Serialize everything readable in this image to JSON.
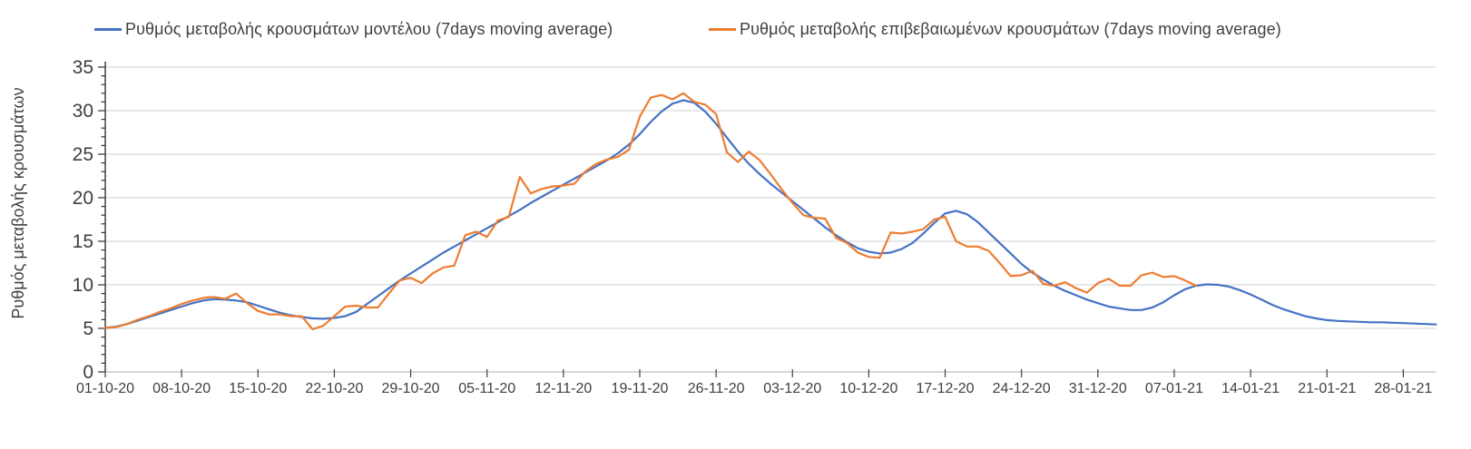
{
  "colors": {
    "model_line": "#4472c4",
    "confirmed_line": "#ed7d31",
    "gridline": "#d9d9d9",
    "x_axis_line": "#bfbfbf",
    "y_axis_line": "#333333",
    "tick_mark": "#404040",
    "label_text": "#3f3f3f"
  },
  "legend": [
    {
      "label": "Ρυθμός μεταβολής κρουσμάτων μοντέλου (7days moving average)",
      "color": "#4472c4"
    },
    {
      "label": "Ρυθμός μεταβολής επιβεβαιωμένων κρουσμάτων (7days moving average)",
      "color": "#ed7d31"
    }
  ],
  "chart_data": {
    "type": "line",
    "title": "",
    "xlabel": "",
    "ylabel": "Ρυθμός μεταβολής κρουσμάτων",
    "ylim": [
      0,
      35
    ],
    "y_major_step": 5,
    "y_minor_step": 1,
    "y_tick_labels": [
      "0",
      "5",
      "10",
      "15",
      "20",
      "25",
      "30",
      "35"
    ],
    "grid": "horizontal-major-only",
    "legend_position": "top",
    "x_is_daily_dates": true,
    "x_start_date": "01-10-20",
    "x_tick_every_days": 7,
    "x_tick_labels": [
      "01-10-20",
      "08-10-20",
      "15-10-20",
      "22-10-20",
      "29-10-20",
      "05-11-20",
      "12-11-20",
      "19-11-20",
      "26-11-20",
      "03-12-20",
      "10-12-20",
      "17-12-20",
      "24-12-20",
      "31-12-20",
      "07-01-21",
      "14-01-21",
      "21-01-21",
      "28-01-21"
    ],
    "series": [
      {
        "name": "Ρυθμός μεταβολής κρουσμάτων μοντέλου (7days moving average)",
        "color": "#4472c4",
        "start_day": 0,
        "values": [
          5.05,
          5.2,
          5.5,
          5.9,
          6.3,
          6.7,
          7.1,
          7.5,
          7.9,
          8.2,
          8.35,
          8.3,
          8.2,
          8.0,
          7.6,
          7.2,
          6.8,
          6.5,
          6.3,
          6.15,
          6.1,
          6.2,
          6.4,
          6.9,
          7.8,
          8.7,
          9.6,
          10.5,
          11.3,
          12.1,
          12.9,
          13.7,
          14.4,
          15.1,
          15.8,
          16.5,
          17.2,
          17.9,
          18.6,
          19.4,
          20.1,
          20.8,
          21.5,
          22.2,
          22.9,
          23.6,
          24.3,
          25.1,
          26.1,
          27.3,
          28.7,
          29.9,
          30.8,
          31.2,
          30.9,
          29.9,
          28.5,
          26.9,
          25.3,
          23.9,
          22.7,
          21.6,
          20.6,
          19.6,
          18.6,
          17.6,
          16.6,
          15.7,
          14.9,
          14.2,
          13.8,
          13.6,
          13.7,
          14.1,
          14.8,
          15.9,
          17.1,
          18.2,
          18.5,
          18.1,
          17.2,
          16.0,
          14.8,
          13.6,
          12.4,
          11.4,
          10.6,
          9.9,
          9.3,
          8.8,
          8.3,
          7.9,
          7.5,
          7.3,
          7.1,
          7.1,
          7.4,
          8.0,
          8.8,
          9.5,
          9.9,
          10.05,
          10.0,
          9.8,
          9.4,
          8.9,
          8.3,
          7.7,
          7.2,
          6.8,
          6.4,
          6.15,
          5.95,
          5.85,
          5.8,
          5.75,
          5.7,
          5.7,
          5.65,
          5.6,
          5.55,
          5.5,
          5.45
        ]
      },
      {
        "name": "Ρυθμός μεταβολής επιβεβαιωμένων κρουσμάτων (7days moving average)",
        "color": "#ed7d31",
        "start_day": 0,
        "values": [
          5.05,
          5.15,
          5.5,
          6.0,
          6.4,
          6.9,
          7.3,
          7.8,
          8.2,
          8.5,
          8.6,
          8.4,
          9.0,
          7.9,
          7.0,
          6.6,
          6.6,
          6.4,
          6.4,
          4.9,
          5.3,
          6.4,
          7.5,
          7.6,
          7.4,
          7.4,
          9.0,
          10.5,
          10.8,
          10.2,
          11.3,
          12.0,
          12.2,
          15.7,
          16.1,
          15.5,
          17.4,
          17.8,
          22.4,
          20.5,
          21.0,
          21.3,
          21.4,
          21.6,
          23.0,
          23.9,
          24.4,
          24.7,
          25.5,
          29.3,
          31.5,
          31.8,
          31.3,
          32.0,
          31.0,
          30.7,
          29.6,
          25.2,
          24.1,
          25.3,
          24.3,
          22.7,
          21.0,
          19.4,
          18.0,
          17.7,
          17.6,
          15.4,
          14.8,
          13.7,
          13.2,
          13.1,
          16.0,
          15.9,
          16.1,
          16.4,
          17.5,
          17.8,
          15.0,
          14.4,
          14.4,
          13.9,
          12.5,
          11.0,
          11.1,
          11.6,
          10.1,
          9.9,
          10.3,
          9.6,
          9.1,
          10.2,
          10.7,
          9.9,
          9.9,
          11.1,
          11.4,
          10.9,
          11.0,
          10.5,
          9.9
        ]
      }
    ]
  }
}
